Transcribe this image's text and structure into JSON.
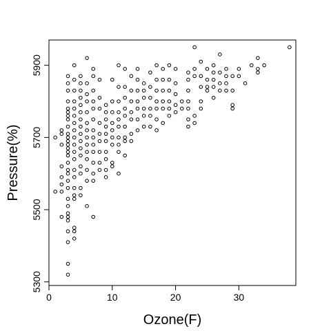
{
  "chart_data": {
    "type": "scatter",
    "title": "",
    "xlabel": "Ozone(F)",
    "ylabel": "Pressure(%)",
    "xlim": [
      0,
      39
    ],
    "ylim": [
      5290,
      5970
    ],
    "x_ticks": [
      0,
      10,
      20,
      30
    ],
    "y_ticks": [
      5300,
      5500,
      5700,
      5900
    ],
    "grid": false,
    "legend": "none",
    "marker": "open-circle",
    "colors": {
      "points": "#000000",
      "axes": "#000000",
      "background": "#ffffff"
    },
    "series": [
      {
        "points": [
          [
            1,
            5700
          ],
          [
            1,
            5550
          ],
          [
            2,
            5720
          ],
          [
            2,
            5710
          ],
          [
            2,
            5680
          ],
          [
            2,
            5620
          ],
          [
            2,
            5590
          ],
          [
            2,
            5570
          ],
          [
            2,
            5550
          ],
          [
            2,
            5480
          ],
          [
            3,
            5870
          ],
          [
            3,
            5850
          ],
          [
            3,
            5830
          ],
          [
            3,
            5800
          ],
          [
            3,
            5780
          ],
          [
            3,
            5770
          ],
          [
            3,
            5760
          ],
          [
            3,
            5750
          ],
          [
            3,
            5730
          ],
          [
            3,
            5710
          ],
          [
            3,
            5700
          ],
          [
            3,
            5690
          ],
          [
            3,
            5680
          ],
          [
            3,
            5670
          ],
          [
            3,
            5660
          ],
          [
            3,
            5650
          ],
          [
            3,
            5630
          ],
          [
            3,
            5610
          ],
          [
            3,
            5600
          ],
          [
            3,
            5580
          ],
          [
            3,
            5560
          ],
          [
            3,
            5530
          ],
          [
            3,
            5510
          ],
          [
            3,
            5490
          ],
          [
            3,
            5480
          ],
          [
            3,
            5470
          ],
          [
            3,
            5440
          ],
          [
            3,
            5410
          ],
          [
            3,
            5350
          ],
          [
            3,
            5320
          ],
          [
            4,
            5900
          ],
          [
            4,
            5860
          ],
          [
            4,
            5830
          ],
          [
            4,
            5800
          ],
          [
            4,
            5780
          ],
          [
            4,
            5760
          ],
          [
            4,
            5740
          ],
          [
            4,
            5720
          ],
          [
            4,
            5700
          ],
          [
            4,
            5680
          ],
          [
            4,
            5660
          ],
          [
            4,
            5640
          ],
          [
            4,
            5610
          ],
          [
            4,
            5590
          ],
          [
            4,
            5560
          ],
          [
            4,
            5540
          ],
          [
            4,
            5530
          ],
          [
            4,
            5450
          ],
          [
            4,
            5440
          ],
          [
            4,
            5420
          ],
          [
            5,
            5870
          ],
          [
            5,
            5850
          ],
          [
            5,
            5830
          ],
          [
            5,
            5810
          ],
          [
            5,
            5790
          ],
          [
            5,
            5770
          ],
          [
            5,
            5750
          ],
          [
            5,
            5730
          ],
          [
            5,
            5710
          ],
          [
            5,
            5690
          ],
          [
            5,
            5670
          ],
          [
            5,
            5650
          ],
          [
            5,
            5620
          ],
          [
            5,
            5600
          ],
          [
            5,
            5560
          ],
          [
            5,
            5540
          ],
          [
            6,
            5920
          ],
          [
            6,
            5850
          ],
          [
            6,
            5820
          ],
          [
            6,
            5800
          ],
          [
            6,
            5770
          ],
          [
            6,
            5740
          ],
          [
            6,
            5720
          ],
          [
            6,
            5700
          ],
          [
            6,
            5680
          ],
          [
            6,
            5660
          ],
          [
            6,
            5640
          ],
          [
            6,
            5610
          ],
          [
            6,
            5580
          ],
          [
            6,
            5510
          ],
          [
            7,
            5890
          ],
          [
            7,
            5870
          ],
          [
            7,
            5830
          ],
          [
            7,
            5800
          ],
          [
            7,
            5780
          ],
          [
            7,
            5750
          ],
          [
            7,
            5720
          ],
          [
            7,
            5700
          ],
          [
            7,
            5680
          ],
          [
            7,
            5660
          ],
          [
            7,
            5630
          ],
          [
            7,
            5600
          ],
          [
            7,
            5580
          ],
          [
            7,
            5480
          ],
          [
            8,
            5860
          ],
          [
            8,
            5810
          ],
          [
            8,
            5780
          ],
          [
            8,
            5740
          ],
          [
            8,
            5710
          ],
          [
            8,
            5690
          ],
          [
            8,
            5660
          ],
          [
            8,
            5630
          ],
          [
            8,
            5610
          ],
          [
            9,
            5790
          ],
          [
            9,
            5770
          ],
          [
            9,
            5750
          ],
          [
            9,
            5730
          ],
          [
            9,
            5710
          ],
          [
            9,
            5690
          ],
          [
            9,
            5660
          ],
          [
            9,
            5640
          ],
          [
            9,
            5610
          ],
          [
            9,
            5590
          ],
          [
            10,
            5860
          ],
          [
            10,
            5800
          ],
          [
            10,
            5770
          ],
          [
            10,
            5740
          ],
          [
            10,
            5720
          ],
          [
            10,
            5700
          ],
          [
            10,
            5680
          ],
          [
            10,
            5630
          ],
          [
            10,
            5620
          ],
          [
            11,
            5900
          ],
          [
            11,
            5840
          ],
          [
            11,
            5800
          ],
          [
            11,
            5770
          ],
          [
            11,
            5750
          ],
          [
            11,
            5730
          ],
          [
            11,
            5700
          ],
          [
            11,
            5680
          ],
          [
            11,
            5660
          ],
          [
            11,
            5600
          ],
          [
            12,
            5890
          ],
          [
            12,
            5840
          ],
          [
            12,
            5810
          ],
          [
            12,
            5780
          ],
          [
            12,
            5760
          ],
          [
            12,
            5730
          ],
          [
            12,
            5700
          ],
          [
            12,
            5690
          ],
          [
            12,
            5650
          ],
          [
            13,
            5870
          ],
          [
            13,
            5830
          ],
          [
            13,
            5800
          ],
          [
            13,
            5770
          ],
          [
            13,
            5750
          ],
          [
            13,
            5710
          ],
          [
            13,
            5690
          ],
          [
            14,
            5890
          ],
          [
            14,
            5860
          ],
          [
            14,
            5830
          ],
          [
            14,
            5800
          ],
          [
            14,
            5780
          ],
          [
            14,
            5750
          ],
          [
            14,
            5720
          ],
          [
            15,
            5850
          ],
          [
            15,
            5830
          ],
          [
            15,
            5810
          ],
          [
            15,
            5780
          ],
          [
            15,
            5760
          ],
          [
            15,
            5730
          ],
          [
            16,
            5880
          ],
          [
            16,
            5840
          ],
          [
            16,
            5810
          ],
          [
            16,
            5780
          ],
          [
            16,
            5760
          ],
          [
            16,
            5730
          ],
          [
            17,
            5900
          ],
          [
            17,
            5860
          ],
          [
            17,
            5830
          ],
          [
            17,
            5800
          ],
          [
            17,
            5780
          ],
          [
            17,
            5750
          ],
          [
            17,
            5720
          ],
          [
            18,
            5890
          ],
          [
            18,
            5860
          ],
          [
            18,
            5830
          ],
          [
            18,
            5800
          ],
          [
            18,
            5780
          ],
          [
            18,
            5740
          ],
          [
            19,
            5900
          ],
          [
            19,
            5860
          ],
          [
            19,
            5830
          ],
          [
            19,
            5800
          ],
          [
            19,
            5780
          ],
          [
            19,
            5760
          ],
          [
            20,
            5890
          ],
          [
            20,
            5850
          ],
          [
            20,
            5820
          ],
          [
            20,
            5790
          ],
          [
            20,
            5770
          ],
          [
            21,
            5800
          ],
          [
            21,
            5780
          ],
          [
            22,
            5880
          ],
          [
            22,
            5860
          ],
          [
            22,
            5830
          ],
          [
            22,
            5800
          ],
          [
            22,
            5780
          ],
          [
            22,
            5750
          ],
          [
            22,
            5730
          ],
          [
            23,
            5950
          ],
          [
            23,
            5890
          ],
          [
            23,
            5870
          ],
          [
            23,
            5760
          ],
          [
            23,
            5740
          ],
          [
            24,
            5910
          ],
          [
            24,
            5870
          ],
          [
            24,
            5840
          ],
          [
            24,
            5800
          ],
          [
            24,
            5780
          ],
          [
            25,
            5890
          ],
          [
            25,
            5860
          ],
          [
            25,
            5840
          ],
          [
            25,
            5830
          ],
          [
            26,
            5900
          ],
          [
            26,
            5880
          ],
          [
            26,
            5860
          ],
          [
            26,
            5840
          ],
          [
            26,
            5810
          ],
          [
            27,
            5930
          ],
          [
            27,
            5880
          ],
          [
            27,
            5850
          ],
          [
            27,
            5830
          ],
          [
            28,
            5890
          ],
          [
            28,
            5870
          ],
          [
            28,
            5850
          ],
          [
            28,
            5830
          ],
          [
            29,
            5870
          ],
          [
            29,
            5830
          ],
          [
            29,
            5790
          ],
          [
            29,
            5780
          ],
          [
            30,
            5890
          ],
          [
            30,
            5870
          ],
          [
            31,
            5850
          ],
          [
            32,
            5900
          ],
          [
            33,
            5920
          ],
          [
            33,
            5890
          ],
          [
            33,
            5880
          ],
          [
            34,
            5900
          ],
          [
            38,
            5950
          ]
        ]
      }
    ]
  }
}
